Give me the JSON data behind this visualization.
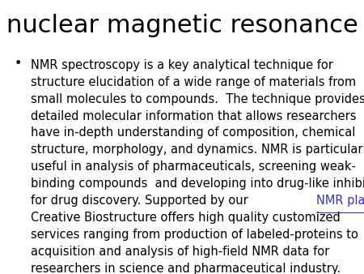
{
  "title": "nuclear magnetic resonance",
  "title_fontsize": 22,
  "title_color": "#000000",
  "background_color": "#ffffff",
  "text_fontsize": 10.5,
  "text_color": "#000000",
  "link_color": "#3333cc",
  "link_text": "NMR platform",
  "body_lines": [
    "NMR spectroscopy is a key analytical technique for",
    "structure elucidation of a wide range of materials from",
    "small molecules to compounds.  The technique provides",
    "detailed molecular information that allows researchers",
    "have in-depth understanding of composition, chemical",
    "structure, morphology, and dynamics. NMR is particularly",
    "useful in analysis of pharmaceuticals, screening weak-",
    "binding compounds  and developing into drug-like inhibitors",
    "for drug discovery. Supported by our NMR platform,",
    "Creative Biostructure offers high quality customized",
    "services ranging from production of labeled-proteins to",
    "acquisition and analysis of high-field NMR data for",
    "researchers in science and pharmaceutical industry."
  ],
  "link_line_idx": 8,
  "link_before": "for drug discovery. Supported by our ",
  "link_after": ","
}
